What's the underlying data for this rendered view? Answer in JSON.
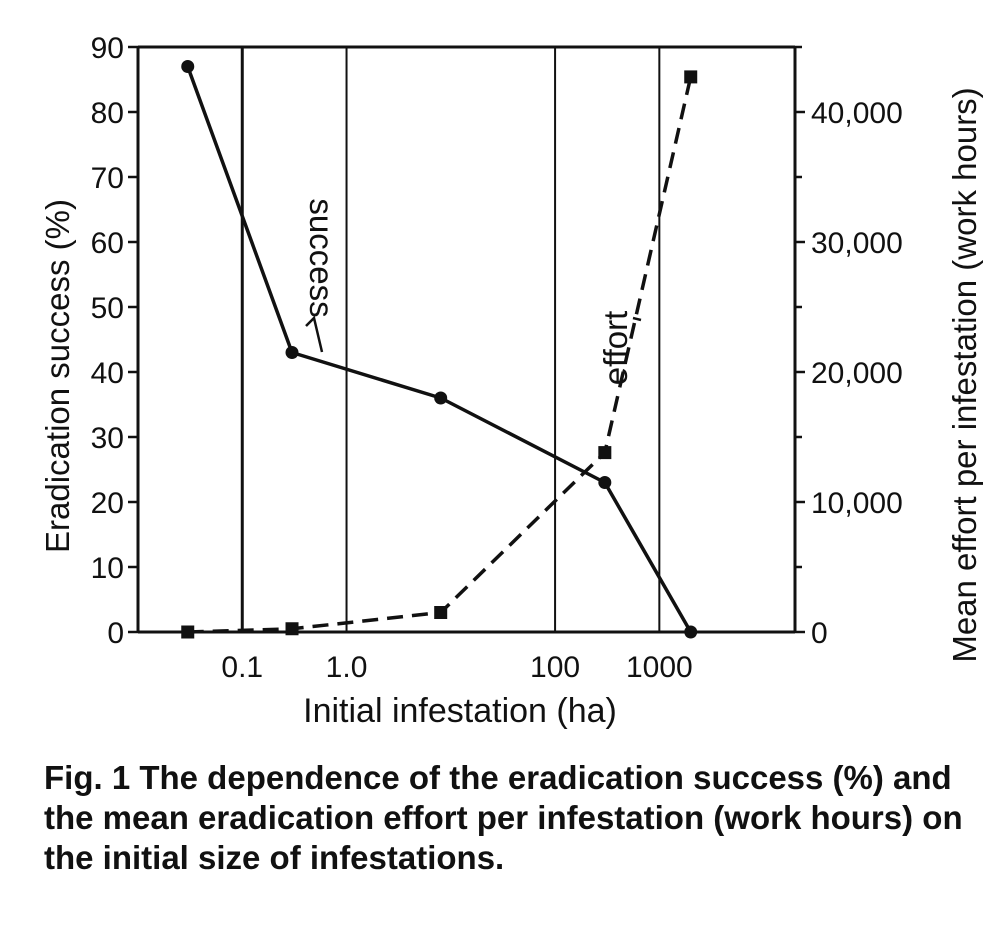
{
  "chart_data": {
    "type": "line",
    "xlabel": "Initial infestation (ha)",
    "ylabel_left": "Eradication success (%)",
    "ylabel_right": "Mean effort per infestation (work hours)",
    "x_scale": "log",
    "xlim": [
      0.01,
      20000
    ],
    "x_ticks": [
      0.1,
      1.0,
      100,
      1000
    ],
    "x_tick_labels": [
      "0.1",
      "1.0",
      "100",
      "1000"
    ],
    "ylim_left": [
      0,
      90
    ],
    "y_ticks_left": [
      0,
      10,
      20,
      30,
      40,
      50,
      60,
      70,
      80,
      90
    ],
    "y_tick_labels_left": [
      "0",
      "10",
      "20",
      "30",
      "40",
      "50",
      "60",
      "70",
      "80",
      "90"
    ],
    "ylim_right": [
      0,
      45000
    ],
    "y_ticks_right": [
      0,
      10000,
      20000,
      30000,
      40000
    ],
    "y_tick_labels_right": [
      "0",
      "10,000",
      "20,000",
      "30,000",
      "40,000"
    ],
    "grid": "vertical lines at x ticks",
    "series": [
      {
        "name": "success",
        "axis": "left",
        "style": "solid",
        "marker": "circle",
        "x": [
          0.03,
          0.3,
          8,
          300,
          2000
        ],
        "y": [
          87,
          43,
          36,
          23,
          0
        ]
      },
      {
        "name": "effort",
        "axis": "right",
        "style": "dashed",
        "marker": "square",
        "x": [
          0.03,
          0.3,
          8,
          300,
          2000
        ],
        "y": [
          0,
          250,
          1500,
          13800,
          42700
        ]
      }
    ]
  },
  "caption": "Fig. 1   The dependence of the eradication success (%) and the mean eradication effort per infestation (work hours) on the initial size of infestations."
}
